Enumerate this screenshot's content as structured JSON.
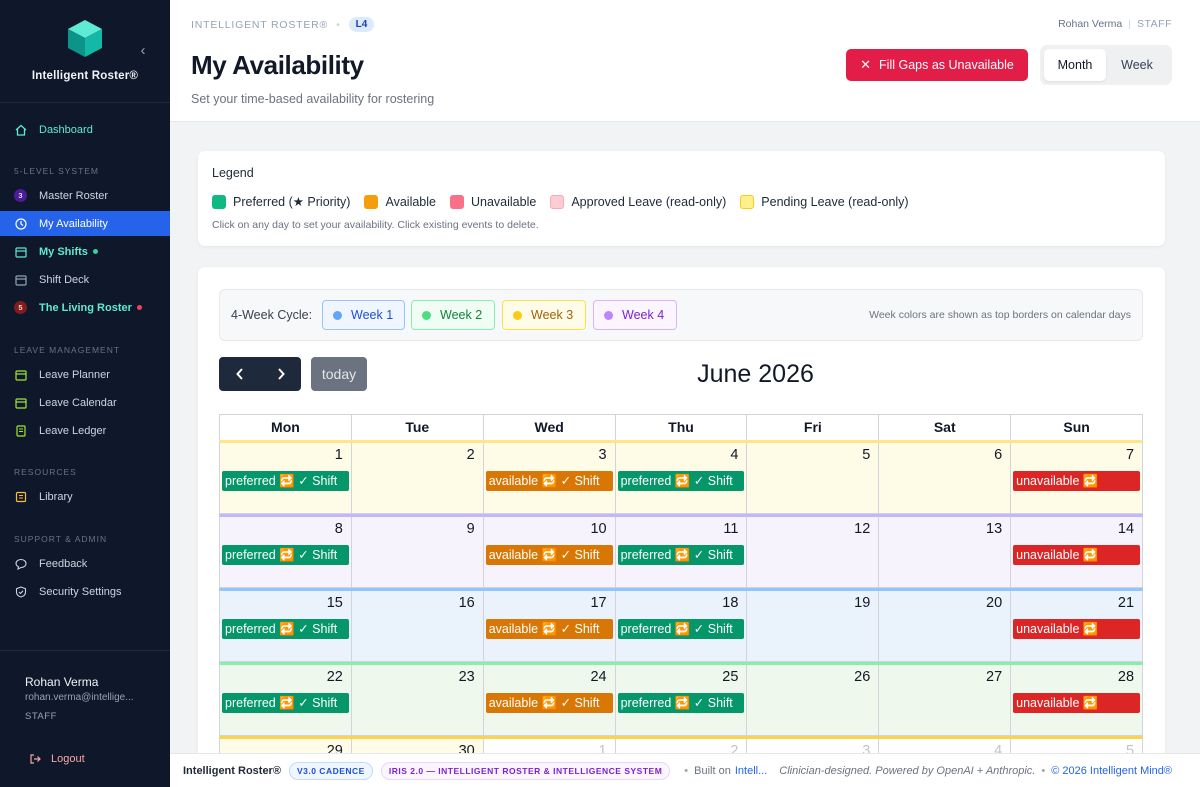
{
  "app": {
    "brand": "Intelligent Roster®"
  },
  "sidebar": {
    "sections": {
      "five_level": "5-LEVEL SYSTEM",
      "leave": "LEAVE MANAGEMENT",
      "resources": "RESOURCES",
      "support": "SUPPORT & ADMIN"
    },
    "items": {
      "dashboard": "Dashboard",
      "master_roster": "Master Roster",
      "master_roster_num": "3",
      "my_availability": "My Availability",
      "my_shifts": "My Shifts",
      "shift_deck": "Shift Deck",
      "living_roster": "The Living Roster",
      "living_roster_num": "5",
      "leave_planner": "Leave Planner",
      "leave_calendar": "Leave Calendar",
      "leave_ledger": "Leave Ledger",
      "library": "Library",
      "feedback": "Feedback",
      "security_settings": "Security Settings"
    },
    "user": {
      "name": "Rohan Verma",
      "email": "rohan.verma@intellige...",
      "role": "STAFF"
    },
    "logout": "Logout"
  },
  "header": {
    "breadcrumb": "INTELLIGENT ROSTER®",
    "level_badge": "L4",
    "user_name": "Rohan Verma",
    "user_role": "STAFF",
    "title": "My Availability",
    "subtitle": "Set your time-based availability for rostering",
    "fill_gaps_button": "Fill Gaps as Unavailable",
    "view_month": "Month",
    "view_week": "Week",
    "active_view": "Month"
  },
  "legend": {
    "title": "Legend",
    "items": [
      {
        "label": "Preferred (★ Priority)",
        "color": "#10b981",
        "border": "#10b981"
      },
      {
        "label": "Available",
        "color": "#f59e0b",
        "border": "#f59e0b"
      },
      {
        "label": "Unavailable",
        "color": "#f87189",
        "border": "#f87189"
      },
      {
        "label": "Approved Leave (read-only)",
        "color": "#fecdd3",
        "border": "#f9a8b4"
      },
      {
        "label": "Pending Leave (read-only)",
        "color": "#fef08a",
        "border": "#facc15"
      }
    ],
    "hint": "Click on any day to set your availability. Click existing events to delete."
  },
  "cycle": {
    "label": "4-Week Cycle:",
    "weeks": [
      {
        "label": "Week 1",
        "dot": "#60a5fa",
        "bg": "#eff6ff",
        "border": "#93c5fd",
        "text": "#1d4ed8"
      },
      {
        "label": "Week 2",
        "dot": "#4ade80",
        "bg": "#f0fdf4",
        "border": "#86efac",
        "text": "#15803d"
      },
      {
        "label": "Week 3",
        "dot": "#facc15",
        "bg": "#fefce8",
        "border": "#fde047",
        "text": "#a16207"
      },
      {
        "label": "Week 4",
        "dot": "#c084fc",
        "bg": "#faf5ff",
        "border": "#d8b4fe",
        "text": "#7e22ce"
      }
    ],
    "hint": "Week colors are shown as top borders on calendar days"
  },
  "calendar": {
    "today_label": "today",
    "prev_icon": "‹",
    "next_icon": "›",
    "month_title": "June 2026",
    "weekdays": [
      "Mon",
      "Tue",
      "Wed",
      "Thu",
      "Fri",
      "Sat",
      "Sun"
    ],
    "event_colors": {
      "preferred": "#059669",
      "available": "#d97706",
      "unavailable": "#dc2626"
    },
    "weeks": [
      {
        "bg": "#fefbe6",
        "border": "#fde68a",
        "days": [
          {
            "num": "1",
            "event": {
              "type": "preferred",
              "text": "preferred 🔁 ✓ Shift"
            }
          },
          {
            "num": "2"
          },
          {
            "num": "3",
            "event": {
              "type": "available",
              "text": "available 🔁 ✓ Shift"
            }
          },
          {
            "num": "4",
            "event": {
              "type": "preferred",
              "text": "preferred 🔁 ✓ Shift"
            }
          },
          {
            "num": "5"
          },
          {
            "num": "6"
          },
          {
            "num": "7",
            "event": {
              "type": "unavailable",
              "text": "unavailable 🔁"
            }
          }
        ]
      },
      {
        "bg": "#f6f3fd",
        "border": "#c4b5fd",
        "days": [
          {
            "num": "8",
            "event": {
              "type": "preferred",
              "text": "preferred 🔁 ✓ Shift"
            }
          },
          {
            "num": "9"
          },
          {
            "num": "10",
            "event": {
              "type": "available",
              "text": "available 🔁 ✓ Shift"
            }
          },
          {
            "num": "11",
            "event": {
              "type": "preferred",
              "text": "preferred 🔁 ✓ Shift"
            }
          },
          {
            "num": "12"
          },
          {
            "num": "13"
          },
          {
            "num": "14",
            "event": {
              "type": "unavailable",
              "text": "unavailable 🔁"
            }
          }
        ]
      },
      {
        "bg": "#eaf2fc",
        "border": "#93c5fd",
        "days": [
          {
            "num": "15",
            "event": {
              "type": "preferred",
              "text": "preferred 🔁 ✓ Shift"
            }
          },
          {
            "num": "16"
          },
          {
            "num": "17",
            "event": {
              "type": "available",
              "text": "available 🔁 ✓ Shift"
            }
          },
          {
            "num": "18",
            "event": {
              "type": "preferred",
              "text": "preferred 🔁 ✓ Shift"
            }
          },
          {
            "num": "19"
          },
          {
            "num": "20"
          },
          {
            "num": "21",
            "event": {
              "type": "unavailable",
              "text": "unavailable 🔁"
            }
          }
        ]
      },
      {
        "bg": "#eef8ec",
        "border": "#86efac",
        "days": [
          {
            "num": "22",
            "event": {
              "type": "preferred",
              "text": "preferred 🔁 ✓ Shift"
            }
          },
          {
            "num": "23"
          },
          {
            "num": "24",
            "event": {
              "type": "available",
              "text": "available 🔁 ✓ Shift"
            }
          },
          {
            "num": "25",
            "event": {
              "type": "preferred",
              "text": "preferred 🔁 ✓ Shift"
            }
          },
          {
            "num": "26"
          },
          {
            "num": "27"
          },
          {
            "num": "28",
            "event": {
              "type": "unavailable",
              "text": "unavailable 🔁"
            }
          }
        ]
      },
      {
        "bg": "#fefbe6",
        "border": "#fcd34d",
        "days": [
          {
            "num": "29"
          },
          {
            "num": "30"
          },
          {
            "num": "1",
            "muted": true
          },
          {
            "num": "2",
            "muted": true
          },
          {
            "num": "3",
            "muted": true
          },
          {
            "num": "4",
            "muted": true
          },
          {
            "num": "5",
            "muted": true
          }
        ]
      }
    ]
  },
  "footer": {
    "brand": "Intelligent Roster®",
    "version_badge": "V3.0 CADENCE",
    "iris_badge": "IRIS 2.0 — INTELLIGENT ROSTER & INTELLIGENCE SYSTEM",
    "built_on": "Built on",
    "built_on_link": "Intell...",
    "credit": "Clinician-designed. Powered by OpenAI + Anthropic.",
    "copyright": "© 2026 Intelligent Mind®"
  }
}
